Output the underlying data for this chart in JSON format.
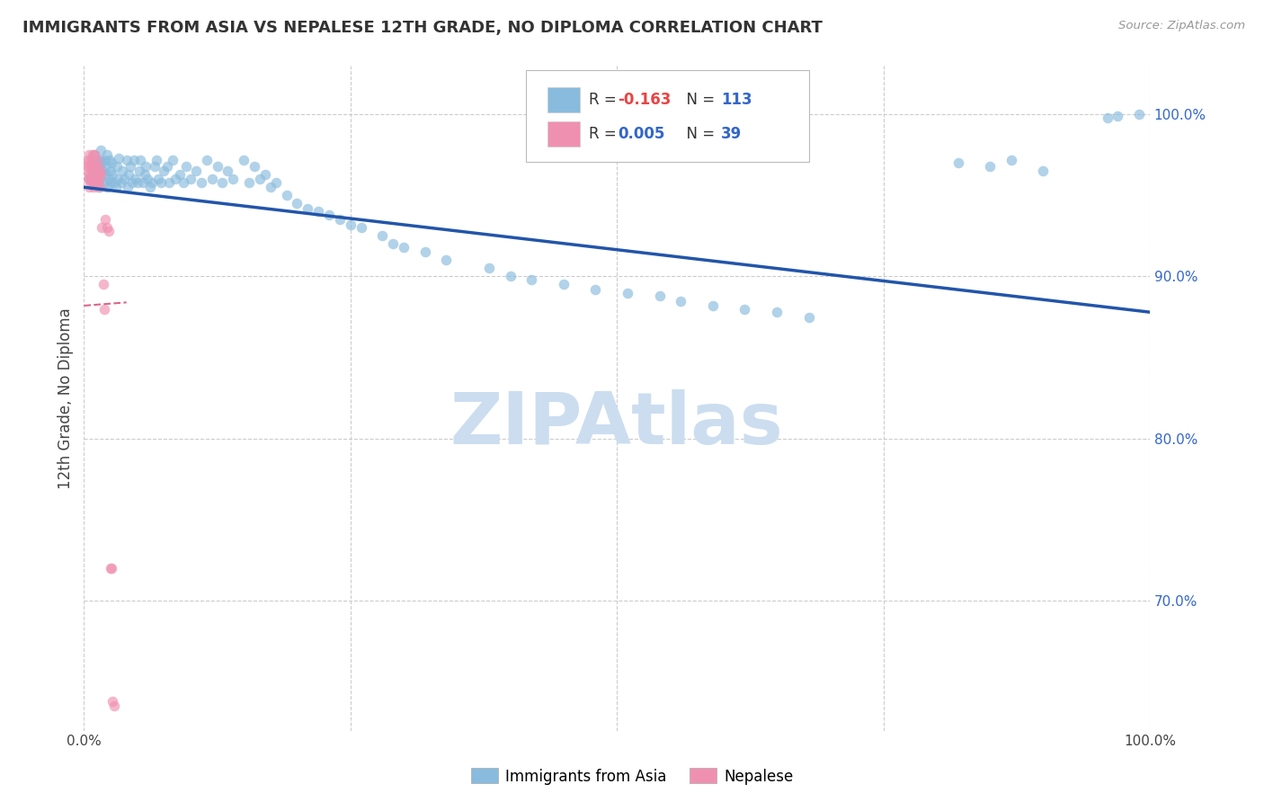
{
  "title": "IMMIGRANTS FROM ASIA VS NEPALESE 12TH GRADE, NO DIPLOMA CORRELATION CHART",
  "source": "Source: ZipAtlas.com",
  "ylabel": "12th Grade, No Diploma",
  "legend_entries": [
    {
      "label_r": "R = ",
      "r_val": "-0.163",
      "label_n": "  N = ",
      "n_val": "113",
      "color": "#a8c8e8"
    },
    {
      "label_r": "R = ",
      "r_val": "0.005",
      "label_n": "  N = ",
      "n_val": "39",
      "color": "#f4b0c8"
    }
  ],
  "legend_bottom": [
    "Immigrants from Asia",
    "Nepalese"
  ],
  "ytick_labels": [
    "100.0%",
    "90.0%",
    "80.0%",
    "70.0%"
  ],
  "ytick_values": [
    1.0,
    0.9,
    0.8,
    0.7
  ],
  "xlim": [
    0.0,
    1.0
  ],
  "ylim": [
    0.62,
    1.03
  ],
  "watermark": "ZIPAtlas",
  "watermark_color": "#ccddf0",
  "background_color": "#ffffff",
  "grid_color": "#cccccc",
  "blue_line_x": [
    0.0,
    1.0
  ],
  "blue_line_y": [
    0.955,
    0.878
  ],
  "pink_line_x": [
    0.0,
    0.04
  ],
  "pink_line_y": [
    0.882,
    0.884
  ],
  "scatter_size": 70,
  "scatter_alpha": 0.65,
  "blue_color": "#88bbdd",
  "pink_color": "#f090b0",
  "blue_line_color": "#2255aa",
  "pink_line_color": "#dd6688",
  "blue_scatter_x": [
    0.005,
    0.007,
    0.008,
    0.009,
    0.01,
    0.01,
    0.011,
    0.012,
    0.013,
    0.013,
    0.014,
    0.015,
    0.015,
    0.016,
    0.016,
    0.017,
    0.018,
    0.019,
    0.019,
    0.02,
    0.021,
    0.022,
    0.022,
    0.023,
    0.024,
    0.025,
    0.025,
    0.026,
    0.027,
    0.028,
    0.03,
    0.031,
    0.032,
    0.033,
    0.035,
    0.036,
    0.038,
    0.04,
    0.041,
    0.042,
    0.044,
    0.045,
    0.047,
    0.048,
    0.05,
    0.052,
    0.053,
    0.055,
    0.057,
    0.058,
    0.06,
    0.062,
    0.064,
    0.066,
    0.068,
    0.07,
    0.072,
    0.075,
    0.078,
    0.08,
    0.083,
    0.086,
    0.09,
    0.093,
    0.096,
    0.1,
    0.105,
    0.11,
    0.115,
    0.12,
    0.125,
    0.13,
    0.135,
    0.14,
    0.15,
    0.155,
    0.16,
    0.165,
    0.17,
    0.175,
    0.18,
    0.19,
    0.2,
    0.21,
    0.22,
    0.23,
    0.24,
    0.25,
    0.26,
    0.28,
    0.29,
    0.3,
    0.32,
    0.34,
    0.38,
    0.4,
    0.42,
    0.45,
    0.48,
    0.51,
    0.54,
    0.56,
    0.59,
    0.62,
    0.65,
    0.68,
    0.82,
    0.85,
    0.87,
    0.9,
    0.96,
    0.97,
    0.99
  ],
  "blue_scatter_y": [
    0.96,
    0.96,
    0.965,
    0.972,
    0.958,
    0.975,
    0.968,
    0.963,
    0.971,
    0.955,
    0.967,
    0.972,
    0.96,
    0.964,
    0.978,
    0.97,
    0.965,
    0.958,
    0.972,
    0.963,
    0.968,
    0.975,
    0.955,
    0.96,
    0.972,
    0.958,
    0.965,
    0.97,
    0.963,
    0.958,
    0.955,
    0.968,
    0.96,
    0.973,
    0.958,
    0.965,
    0.96,
    0.972,
    0.955,
    0.963,
    0.968,
    0.958,
    0.972,
    0.96,
    0.958,
    0.965,
    0.972,
    0.958,
    0.963,
    0.968,
    0.96,
    0.955,
    0.958,
    0.968,
    0.972,
    0.96,
    0.958,
    0.965,
    0.968,
    0.958,
    0.972,
    0.96,
    0.963,
    0.958,
    0.968,
    0.96,
    0.965,
    0.958,
    0.972,
    0.96,
    0.968,
    0.958,
    0.965,
    0.96,
    0.972,
    0.958,
    0.968,
    0.96,
    0.963,
    0.955,
    0.958,
    0.95,
    0.945,
    0.942,
    0.94,
    0.938,
    0.935,
    0.932,
    0.93,
    0.925,
    0.92,
    0.918,
    0.915,
    0.91,
    0.905,
    0.9,
    0.898,
    0.895,
    0.892,
    0.89,
    0.888,
    0.885,
    0.882,
    0.88,
    0.878,
    0.875,
    0.97,
    0.968,
    0.972,
    0.965,
    0.998,
    0.999,
    1.0
  ],
  "pink_scatter_x": [
    0.003,
    0.003,
    0.004,
    0.004,
    0.004,
    0.005,
    0.005,
    0.005,
    0.006,
    0.006,
    0.007,
    0.007,
    0.007,
    0.008,
    0.008,
    0.009,
    0.009,
    0.01,
    0.01,
    0.011,
    0.011,
    0.012,
    0.012,
    0.013,
    0.013,
    0.014,
    0.015,
    0.015,
    0.016,
    0.017,
    0.018,
    0.019,
    0.02,
    0.022,
    0.023,
    0.025,
    0.026,
    0.027,
    0.028
  ],
  "pink_scatter_y": [
    0.97,
    0.965,
    0.972,
    0.96,
    0.968,
    0.975,
    0.963,
    0.955,
    0.968,
    0.96,
    0.972,
    0.958,
    0.965,
    0.975,
    0.96,
    0.968,
    0.955,
    0.975,
    0.96,
    0.968,
    0.958,
    0.972,
    0.963,
    0.968,
    0.958,
    0.96,
    0.965,
    0.955,
    0.963,
    0.93,
    0.895,
    0.88,
    0.935,
    0.93,
    0.928,
    0.72,
    0.72,
    0.638,
    0.635
  ]
}
